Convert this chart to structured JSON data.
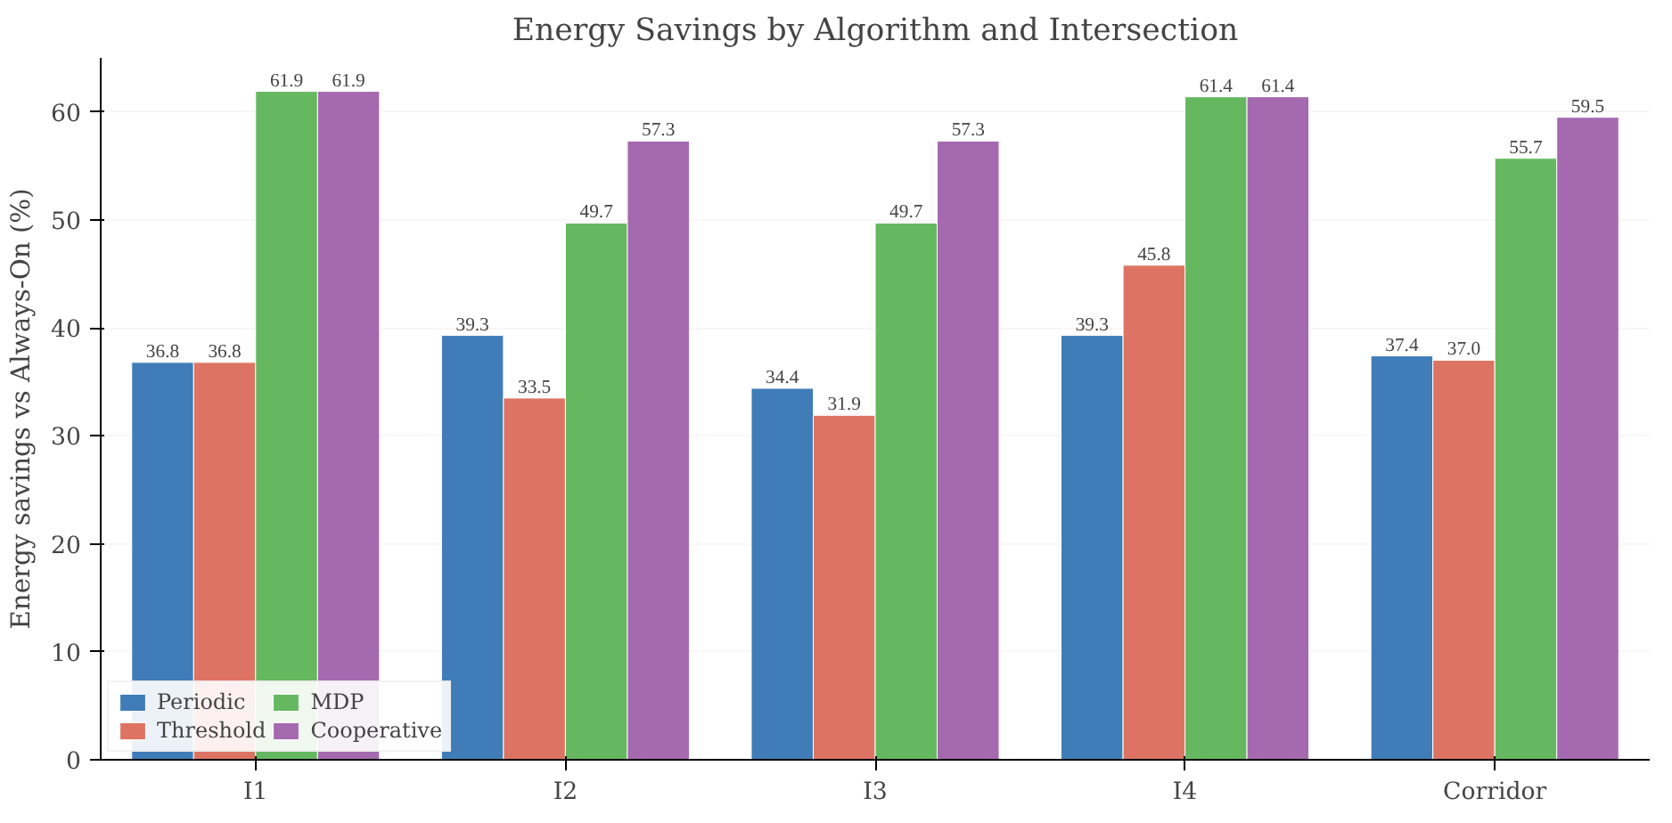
{
  "chart_data": {
    "type": "bar",
    "title": "Energy Savings by Algorithm and Intersection",
    "ylabel": "Energy savings vs Always-On (%)",
    "categories": [
      "I1",
      "I2",
      "I3",
      "I4",
      "Corridor"
    ],
    "series": [
      {
        "name": "Periodic",
        "color": "#3f7cb8",
        "values": [
          36.8,
          39.3,
          34.4,
          39.3,
          37.4
        ],
        "value_labels": [
          "36.8",
          "39.3",
          "34.4",
          "39.3",
          "37.4"
        ]
      },
      {
        "name": "Threshold",
        "color": "#dd7463",
        "values": [
          36.8,
          33.5,
          31.9,
          45.8,
          37.0
        ],
        "value_labels": [
          "36.8",
          "33.5",
          "31.9",
          "45.8",
          "37.0"
        ]
      },
      {
        "name": "MDP",
        "color": "#65b85f",
        "values": [
          61.9,
          49.7,
          49.7,
          61.4,
          55.7
        ],
        "value_labels": [
          "61.9",
          "49.7",
          "49.7",
          "61.4",
          "55.7"
        ]
      },
      {
        "name": "Cooperative",
        "color": "#a569b0",
        "values": [
          61.9,
          57.3,
          57.3,
          61.4,
          59.5
        ],
        "value_labels": [
          "61.9",
          "57.3",
          "57.3",
          "61.4",
          "59.5"
        ]
      }
    ],
    "ylim": [
      0,
      65
    ],
    "yticks": [
      0,
      10,
      20,
      30,
      40,
      50,
      60
    ],
    "grid": "y",
    "legend": "bottom left"
  }
}
